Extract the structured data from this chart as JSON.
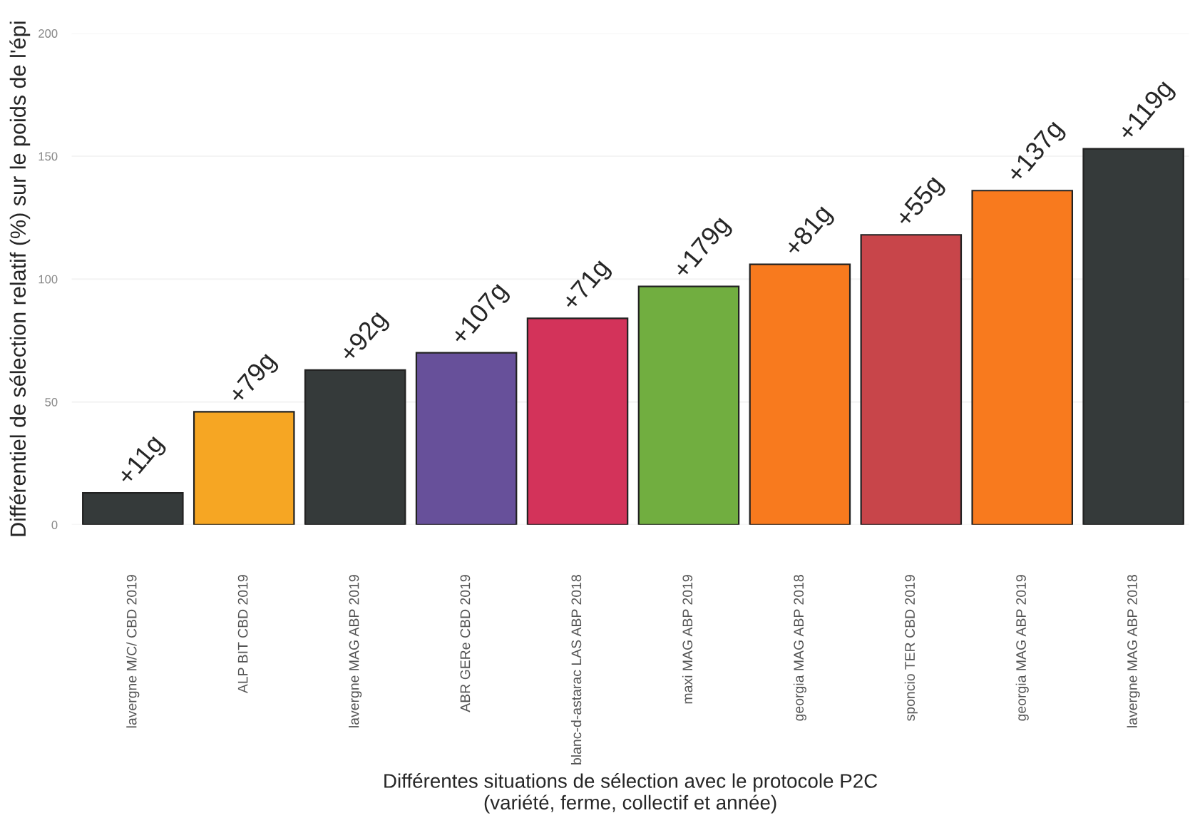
{
  "chart_data": {
    "type": "bar",
    "xlabel": "Différentes situations de sélection avec le protocole P2C\n(variété, ferme, collectif et année)",
    "ylabel": "Différentiel de sélection relatif (%) sur le poids de l'épi",
    "categories": [
      "lavergne M/C/ CBD 2019",
      "ALP BIT CBD 2019",
      "lavergne MAG ABP 2019",
      "ABR GERe CBD 2019",
      "blanc-d-astarac LAS ABP 2018",
      "maxi MAG ABP 2019",
      "georgia MAG ABP 2018",
      "sponcio TER CBD 2019",
      "georgia MAG ABP 2019",
      "lavergne MAG ABP 2018"
    ],
    "values": [
      13,
      46,
      63,
      70,
      84,
      97,
      106,
      118,
      136,
      153
    ],
    "colors": [
      "#353a3a",
      "#f6a623",
      "#353a3a",
      "#67509a",
      "#d3335a",
      "#71ae40",
      "#f87a1e",
      "#c8454a",
      "#f87a1e",
      "#353a3a"
    ],
    "annotations": [
      {
        "text": "+11g",
        "x": "lavergne M/C/ CBD 2019",
        "y": 13
      },
      {
        "text": "+79g",
        "x": "ALP BIT CBD 2019",
        "y": 46
      },
      {
        "text": "+92g",
        "x": "lavergne MAG ABP 2019",
        "y": 63
      },
      {
        "text": "+107g",
        "x": "ABR GERe CBD 2019",
        "y": 70
      },
      {
        "text": "+71g",
        "x": "blanc-d-astarac LAS ABP 2018",
        "y": 84
      },
      {
        "text": "+179g",
        "x": "maxi MAG ABP 2019",
        "y": 97
      },
      {
        "text": "+81g",
        "x": "georgia MAG ABP 2018",
        "y": 106
      },
      {
        "text": "+55g",
        "x": "sponcio TER CBD 2019",
        "y": 118
      },
      {
        "text": "+137g",
        "x": "georgia MAG ABP 2019",
        "y": 136
      },
      {
        "text": "+119g",
        "x": "lavergne MAG ABP 2018",
        "y": 153
      }
    ],
    "ylim": [
      0,
      200
    ],
    "yticks": [
      0,
      50,
      100,
      150,
      200
    ],
    "grid": "y"
  }
}
